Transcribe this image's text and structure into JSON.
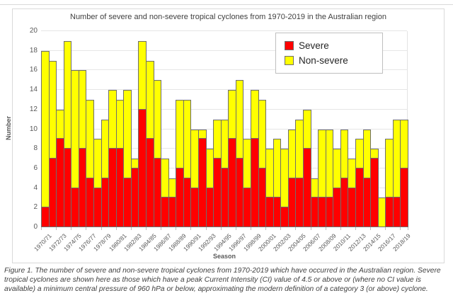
{
  "figure": {
    "title": "Number of severe and non-severe tropical cyclones from 1970-2019 in the Australian region",
    "legend": [
      {
        "label": "Severe",
        "color": "#ff0000"
      },
      {
        "label": "Non-severe",
        "color": "#ffff00"
      }
    ],
    "y_axis": {
      "title": "Number",
      "ticks": [
        0,
        2,
        4,
        6,
        8,
        10,
        12,
        14,
        16,
        18,
        20
      ]
    },
    "x_axis": {
      "title": "Season",
      "tick_labels": [
        "1970/71",
        "1972/73",
        "1974/75",
        "1976/77",
        "1978/79",
        "1980/81",
        "1982/83",
        "1984/85",
        "1986/87",
        "1988/89",
        "1990/91",
        "1992/93",
        "1994/95",
        "1996/97",
        "1998/99",
        "2000/01",
        "2002/03",
        "2004/05",
        "2006/07",
        "2008/09",
        "2010/11",
        "2012/13",
        "2014/15",
        "2016/17",
        "2018/19"
      ]
    }
  },
  "chart_data": {
    "type": "bar",
    "stacked": true,
    "title": "Number of severe and non-severe tropical cyclones from 1970-2019 in the Australian region",
    "xlabel": "Season",
    "ylabel": "Number",
    "ylim": [
      0,
      20
    ],
    "grid": "horizontal",
    "legend_position": "upper right",
    "x_tick_step": 2,
    "categories": [
      "1970/71",
      "1971/72",
      "1972/73",
      "1973/74",
      "1974/75",
      "1975/76",
      "1976/77",
      "1977/78",
      "1978/79",
      "1979/80",
      "1980/81",
      "1981/82",
      "1982/83",
      "1983/84",
      "1984/85",
      "1985/86",
      "1986/87",
      "1987/88",
      "1988/89",
      "1989/90",
      "1990/91",
      "1991/92",
      "1992/93",
      "1993/94",
      "1994/95",
      "1995/96",
      "1996/97",
      "1997/98",
      "1998/99",
      "1999/00",
      "2000/01",
      "2001/02",
      "2002/03",
      "2003/04",
      "2004/05",
      "2005/06",
      "2006/07",
      "2007/08",
      "2008/09",
      "2009/10",
      "2010/11",
      "2011/12",
      "2012/13",
      "2013/14",
      "2014/15",
      "2015/16",
      "2016/17",
      "2017/18",
      "2018/19"
    ],
    "series": [
      {
        "name": "Severe",
        "color": "#ff0000",
        "values": [
          2,
          7,
          9,
          8,
          4,
          8,
          5,
          4,
          5,
          8,
          8,
          5,
          6,
          12,
          9,
          7,
          3,
          3,
          6,
          5,
          4,
          9,
          4,
          7,
          6,
          9,
          7,
          4,
          9,
          6,
          3,
          3,
          2,
          5,
          5,
          8,
          3,
          3,
          3,
          4,
          5,
          4,
          6,
          5,
          7,
          0,
          3,
          3,
          6
        ]
      },
      {
        "name": "Non-severe",
        "color": "#ffff00",
        "values": [
          16,
          10,
          3,
          11,
          12,
          8,
          8,
          5,
          6,
          6,
          5,
          9,
          1,
          7,
          8,
          8,
          4,
          2,
          7,
          8,
          6,
          1,
          4,
          4,
          5,
          5,
          8,
          5,
          5,
          7,
          5,
          6,
          6,
          5,
          6,
          4,
          2,
          7,
          7,
          4,
          5,
          3,
          3,
          5,
          1,
          3,
          6,
          8,
          5
        ]
      }
    ]
  },
  "caption": "Figure 1. The number of severe and non-severe tropical cyclones from 1970-2019 which have occurred in the Australian region. Severe tropical cyclones are shown here as those which have a peak Current Intensity (CI) value of 4.5 or above or (where no CI value is available) a minimum central pressure of 960 hPa or below, approximating the modern definition of a category 3 (or above) cyclone."
}
